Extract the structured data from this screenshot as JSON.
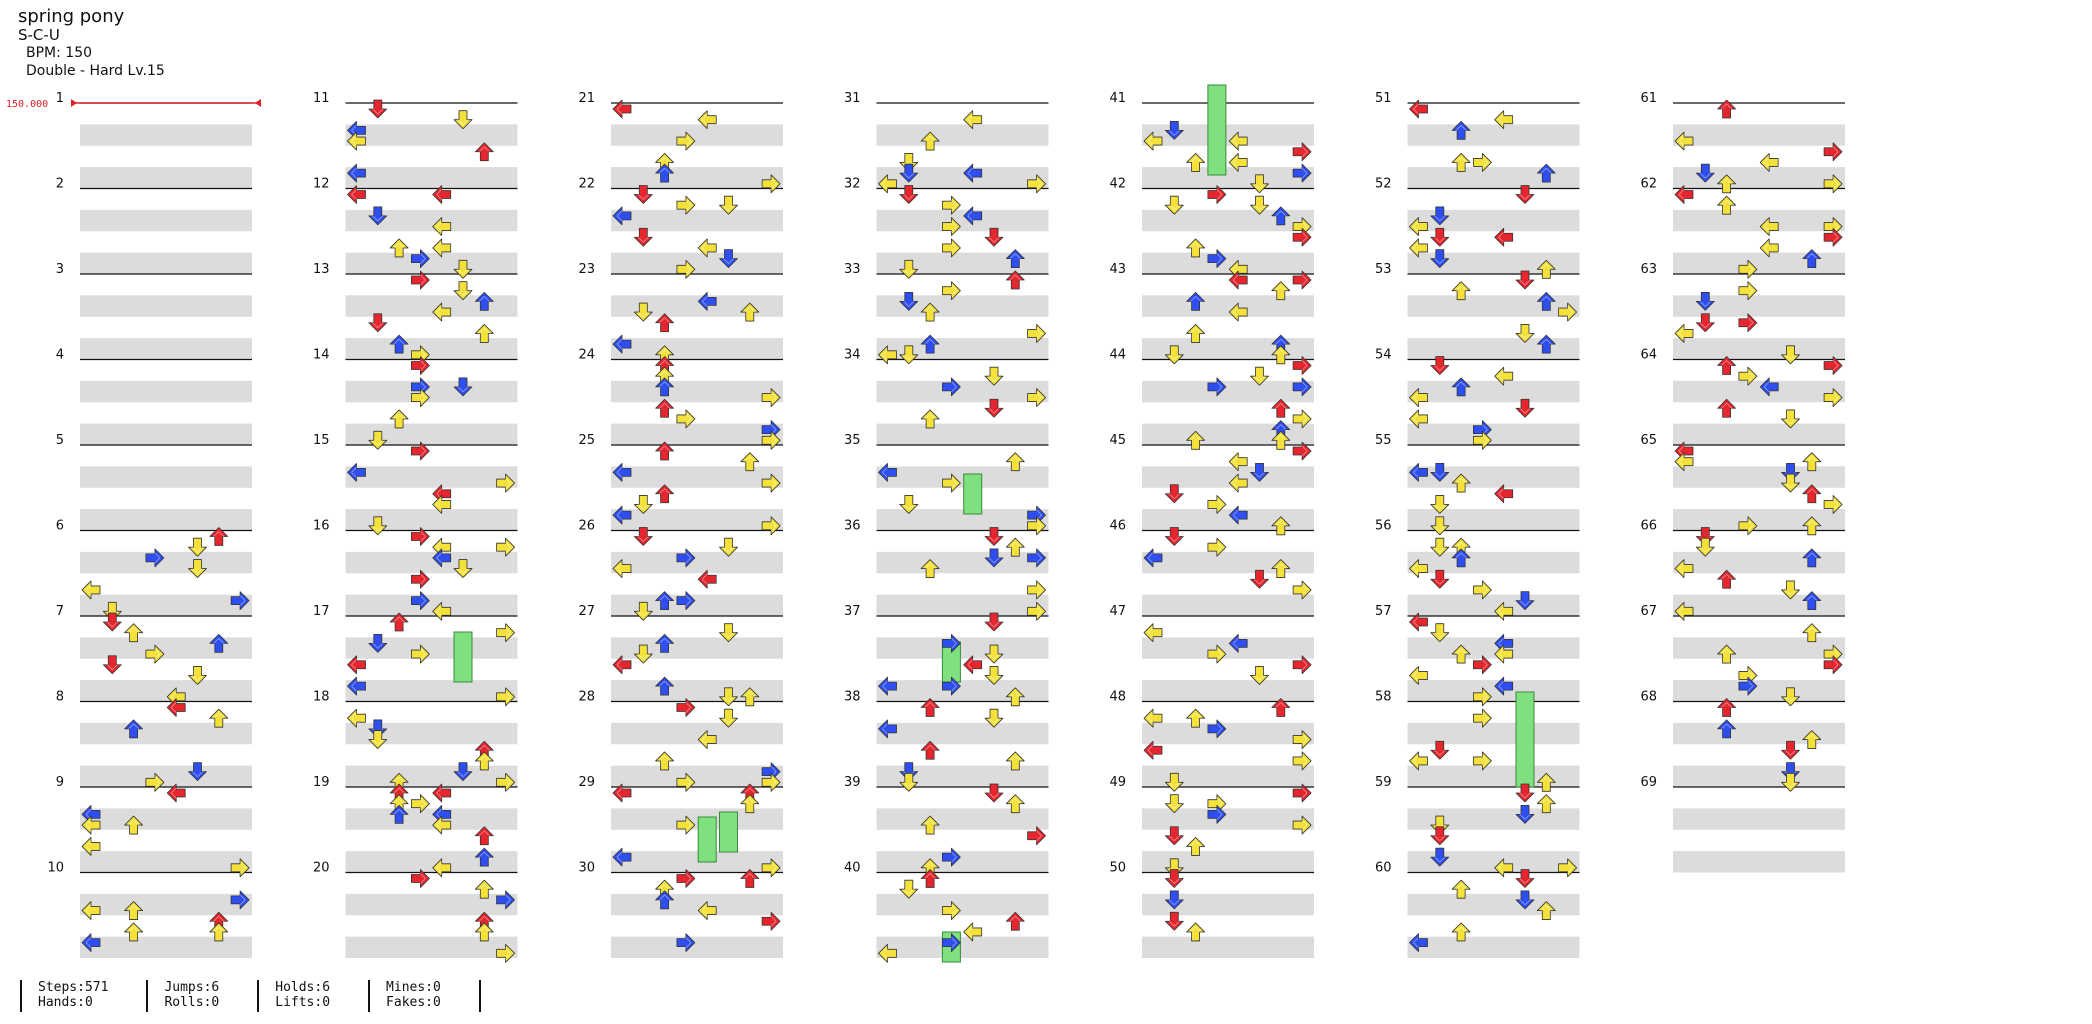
{
  "song": {
    "title": "spring pony",
    "artist": "S-C-U",
    "bpm_label": "BPM: 150",
    "difficulty": "Double - Hard Lv.15"
  },
  "bpm_marker": "150.000",
  "measures_total": 69,
  "stats": [
    {
      "a": "Steps:571",
      "b": "Hands:0"
    },
    {
      "a": "Jumps:6",
      "b": "Rolls:0"
    },
    {
      "a": "Holds:6",
      "b": "Lifts:0"
    },
    {
      "a": "Mines:0",
      "b": "Fakes:0"
    }
  ],
  "colors": {
    "quarter": "#e6262e",
    "eighth": "#2e4ef0",
    "sixteenth": "#f4e23a",
    "hold": "#7ee07e",
    "band": "#dcdcdc"
  },
  "icons": {
    "left": "arrow-left-icon",
    "down": "arrow-down-icon",
    "up": "arrow-up-icon",
    "right": "arrow-right-icon"
  }
}
